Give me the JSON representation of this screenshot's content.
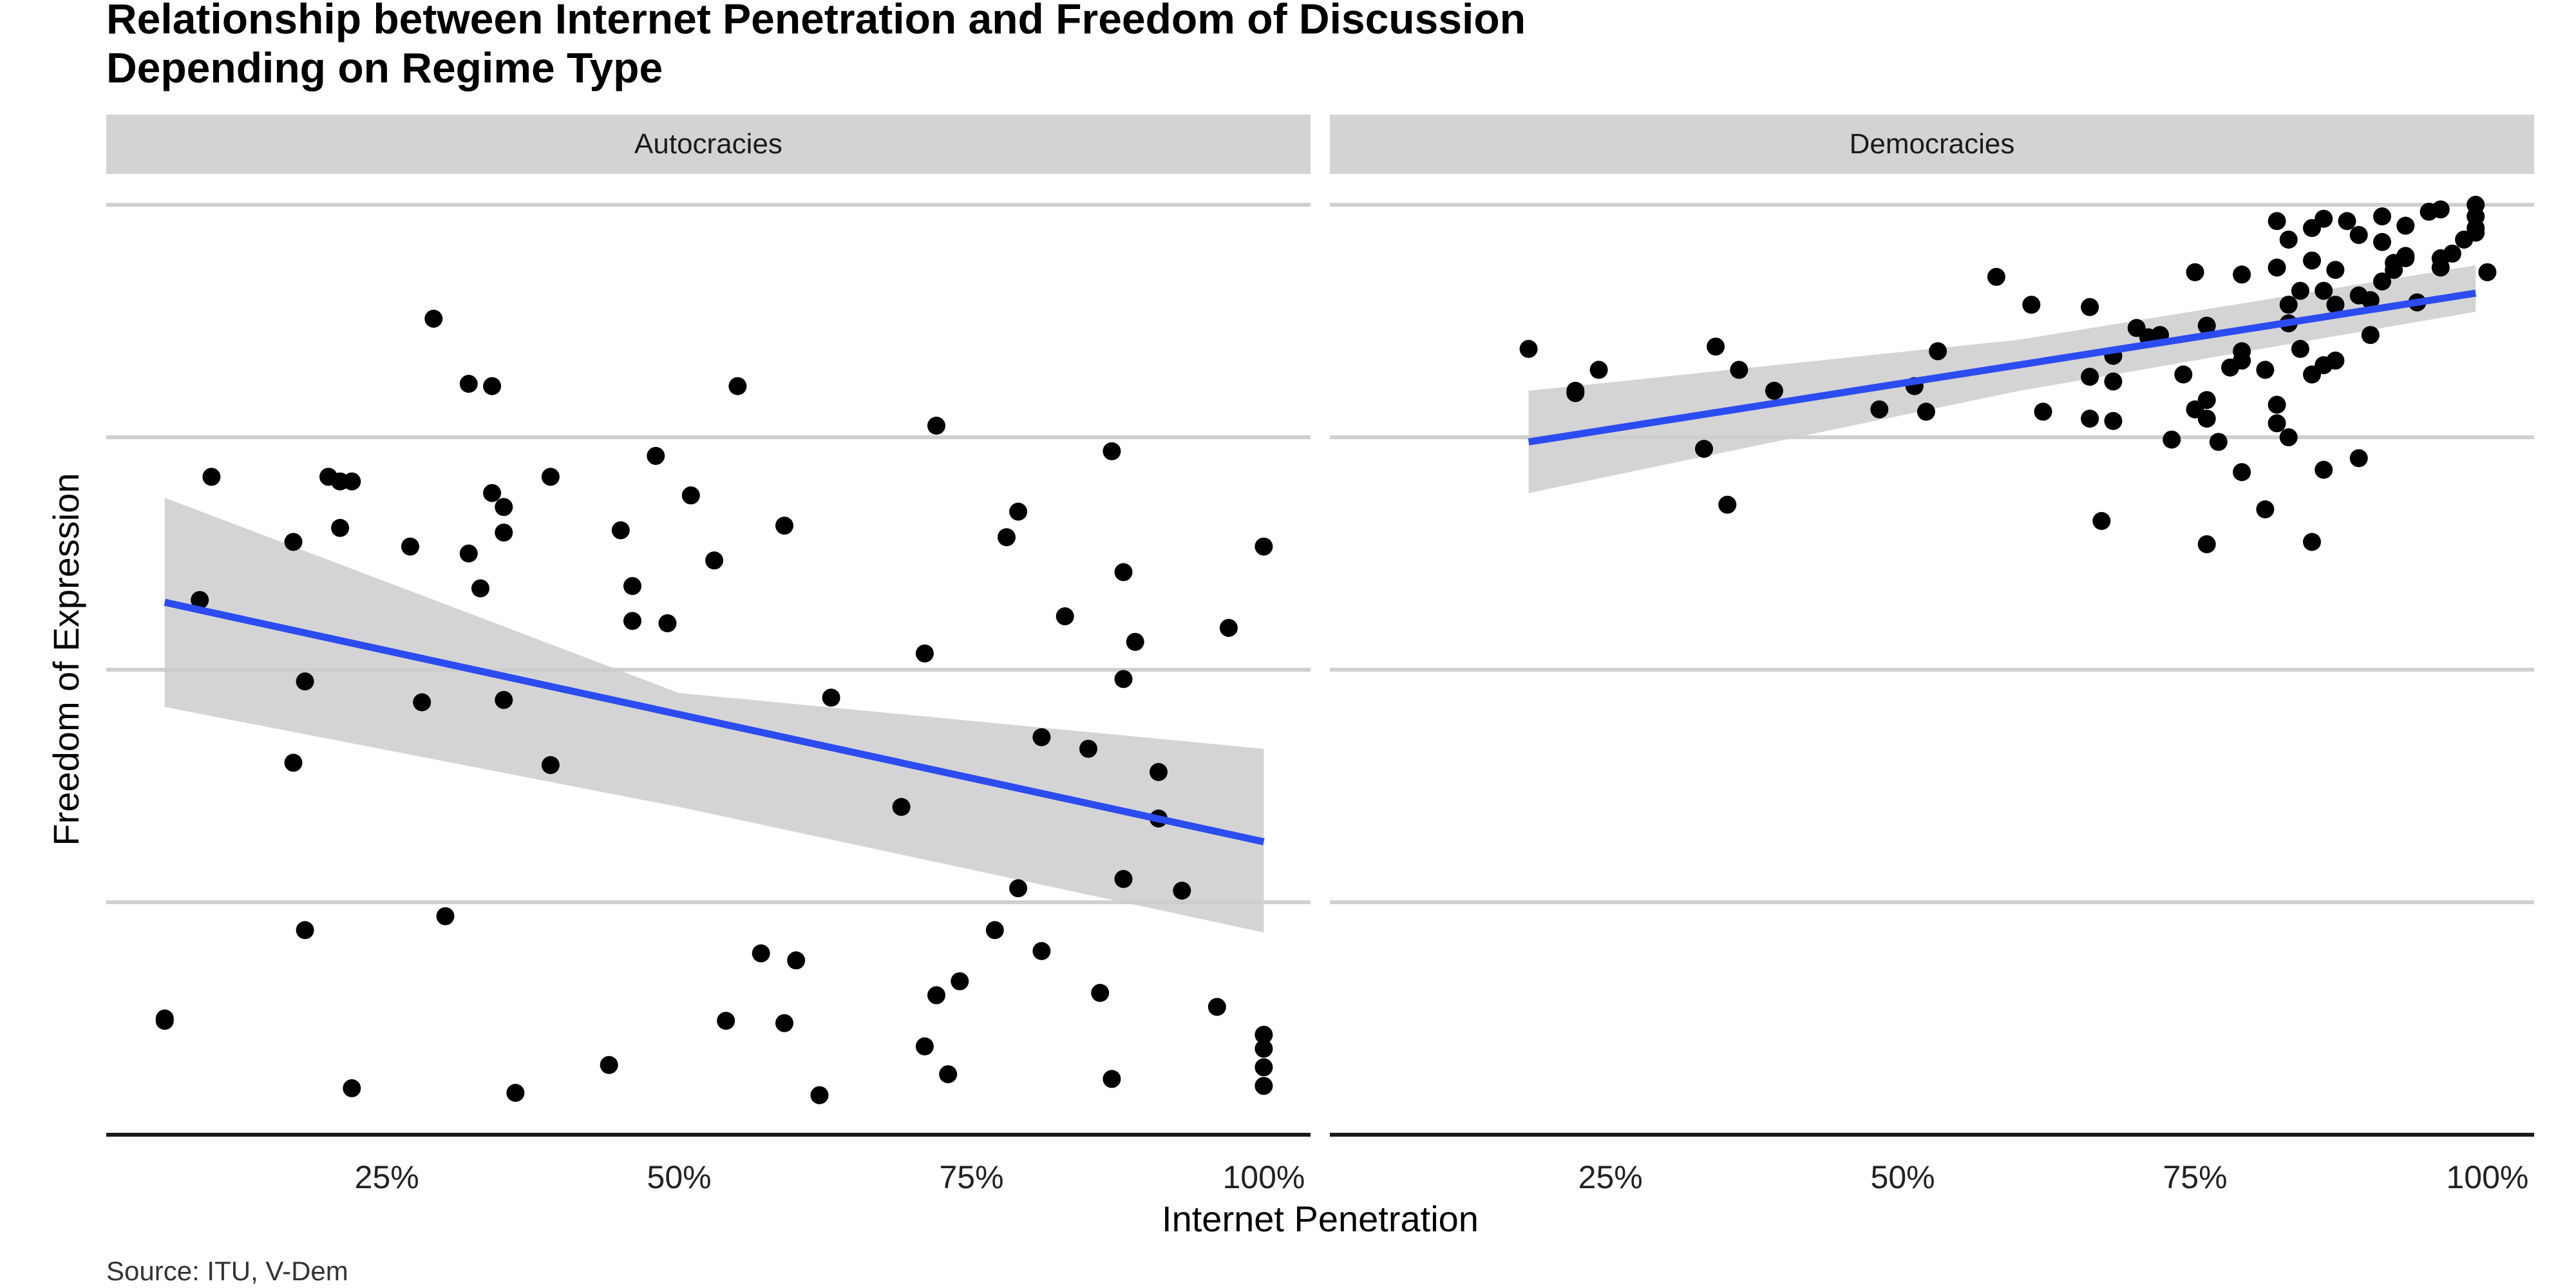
{
  "title_line1": "Relationship between Internet Penetration and Freedom of Discussion",
  "title_line2": "Depending on Regime Type",
  "xlabel": "Internet Penetration",
  "ylabel": "Freedom of Expression",
  "caption": "Source: ITU, V-Dem",
  "colors": {
    "points": "#000000",
    "fit_line": "#2b4cf0",
    "ribbon": "#cccccc",
    "strip": "#d3d3d3",
    "grid": "#d0d0d0"
  },
  "chart_data": [
    {
      "type": "scatter",
      "panel": "Autocracies",
      "x_ticks": [
        "25%",
        "50%",
        "75%",
        "100%"
      ],
      "xlim": [
        0.01,
        1.04
      ],
      "ylim": [
        0,
        4
      ],
      "grid": "horizontal",
      "fit": {
        "method": "lm",
        "x0": 0.06,
        "y0": 2.29,
        "x1": 1.0,
        "y1": 1.26,
        "band": [
          [
            0.06,
            1.84,
            2.74
          ],
          [
            0.5,
            1.41,
            1.9
          ],
          [
            1.0,
            0.87,
            1.66
          ]
        ]
      },
      "points": [
        [
          0.06,
          0.5
        ],
        [
          0.06,
          0.49
        ],
        [
          0.09,
          2.3
        ],
        [
          0.1,
          2.83
        ],
        [
          0.17,
          2.55
        ],
        [
          0.17,
          1.6
        ],
        [
          0.18,
          1.95
        ],
        [
          0.18,
          0.88
        ],
        [
          0.2,
          2.83
        ],
        [
          0.21,
          2.81
        ],
        [
          0.21,
          2.61
        ],
        [
          0.22,
          2.81
        ],
        [
          0.22,
          0.2
        ],
        [
          0.27,
          2.53
        ],
        [
          0.28,
          1.86
        ],
        [
          0.29,
          3.51
        ],
        [
          0.3,
          0.94
        ],
        [
          0.32,
          3.23
        ],
        [
          0.32,
          2.5
        ],
        [
          0.33,
          2.35
        ],
        [
          0.34,
          3.22
        ],
        [
          0.34,
          2.76
        ],
        [
          0.35,
          2.7
        ],
        [
          0.35,
          2.59
        ],
        [
          0.35,
          1.87
        ],
        [
          0.36,
          0.18
        ],
        [
          0.39,
          2.83
        ],
        [
          0.39,
          1.59
        ],
        [
          0.44,
          0.3
        ],
        [
          0.45,
          2.6
        ],
        [
          0.46,
          2.36
        ],
        [
          0.46,
          2.21
        ],
        [
          0.48,
          2.92
        ],
        [
          0.49,
          2.2
        ],
        [
          0.51,
          2.75
        ],
        [
          0.53,
          2.47
        ],
        [
          0.54,
          0.49
        ],
        [
          0.55,
          3.22
        ],
        [
          0.57,
          0.78
        ],
        [
          0.59,
          2.62
        ],
        [
          0.59,
          0.48
        ],
        [
          0.6,
          0.75
        ],
        [
          0.62,
          0.17
        ],
        [
          0.63,
          1.88
        ],
        [
          0.69,
          1.41
        ],
        [
          0.71,
          2.07
        ],
        [
          0.71,
          0.38
        ],
        [
          0.72,
          3.05
        ],
        [
          0.72,
          0.6
        ],
        [
          0.73,
          0.26
        ],
        [
          0.74,
          0.66
        ],
        [
          0.77,
          0.88
        ],
        [
          0.78,
          2.57
        ],
        [
          0.79,
          2.68
        ],
        [
          0.79,
          1.06
        ],
        [
          0.81,
          1.71
        ],
        [
          0.81,
          0.79
        ],
        [
          0.83,
          2.23
        ],
        [
          0.85,
          1.66
        ],
        [
          0.86,
          0.61
        ],
        [
          0.87,
          2.94
        ],
        [
          0.87,
          0.24
        ],
        [
          0.88,
          2.42
        ],
        [
          0.88,
          1.96
        ],
        [
          0.88,
          1.1
        ],
        [
          0.89,
          2.12
        ],
        [
          0.91,
          1.56
        ],
        [
          0.91,
          1.36
        ],
        [
          0.93,
          1.05
        ],
        [
          0.96,
          0.55
        ],
        [
          0.97,
          2.18
        ],
        [
          1.0,
          2.53
        ],
        [
          1.0,
          0.43
        ],
        [
          1.0,
          0.37
        ],
        [
          1.0,
          0.29
        ],
        [
          1.0,
          0.21
        ]
      ]
    },
    {
      "type": "scatter",
      "panel": "Democracies",
      "x_ticks": [
        "25%",
        "50%",
        "75%",
        "100%"
      ],
      "xlim": [
        0.01,
        1.04
      ],
      "ylim": [
        0,
        4
      ],
      "grid": "horizontal",
      "fit": {
        "method": "lm",
        "x0": 0.18,
        "y0": 2.98,
        "x1": 0.99,
        "y1": 3.62,
        "band": [
          [
            0.18,
            2.76,
            3.2
          ],
          [
            0.6,
            3.2,
            3.42
          ],
          [
            0.99,
            3.54,
            3.74
          ]
        ]
      },
      "points": [
        [
          0.18,
          3.38
        ],
        [
          0.22,
          3.2
        ],
        [
          0.22,
          3.19
        ],
        [
          0.24,
          3.29
        ],
        [
          0.33,
          2.95
        ],
        [
          0.34,
          3.39
        ],
        [
          0.35,
          2.71
        ],
        [
          0.36,
          3.29
        ],
        [
          0.39,
          3.2
        ],
        [
          0.48,
          3.12
        ],
        [
          0.51,
          3.22
        ],
        [
          0.52,
          3.11
        ],
        [
          0.53,
          3.37
        ],
        [
          0.58,
          3.69
        ],
        [
          0.61,
          3.57
        ],
        [
          0.62,
          3.11
        ],
        [
          0.66,
          3.56
        ],
        [
          0.66,
          3.26
        ],
        [
          0.66,
          3.08
        ],
        [
          0.67,
          2.64
        ],
        [
          0.68,
          3.35
        ],
        [
          0.68,
          3.24
        ],
        [
          0.68,
          3.07
        ],
        [
          0.7,
          3.47
        ],
        [
          0.71,
          3.43
        ],
        [
          0.72,
          3.44
        ],
        [
          0.73,
          2.99
        ],
        [
          0.74,
          3.27
        ],
        [
          0.75,
          3.71
        ],
        [
          0.75,
          3.12
        ],
        [
          0.76,
          3.48
        ],
        [
          0.76,
          3.16
        ],
        [
          0.76,
          3.08
        ],
        [
          0.76,
          2.54
        ],
        [
          0.77,
          2.98
        ],
        [
          0.78,
          3.3
        ],
        [
          0.79,
          3.7
        ],
        [
          0.79,
          3.37
        ],
        [
          0.79,
          3.33
        ],
        [
          0.79,
          2.85
        ],
        [
          0.81,
          3.29
        ],
        [
          0.81,
          2.69
        ],
        [
          0.82,
          3.93
        ],
        [
          0.82,
          3.73
        ],
        [
          0.82,
          3.14
        ],
        [
          0.82,
          3.06
        ],
        [
          0.83,
          3.85
        ],
        [
          0.83,
          3.57
        ],
        [
          0.83,
          3.49
        ],
        [
          0.83,
          3.0
        ],
        [
          0.84,
          3.63
        ],
        [
          0.84,
          3.38
        ],
        [
          0.85,
          3.9
        ],
        [
          0.85,
          3.76
        ],
        [
          0.85,
          3.27
        ],
        [
          0.85,
          2.55
        ],
        [
          0.86,
          3.94
        ],
        [
          0.86,
          3.63
        ],
        [
          0.86,
          3.31
        ],
        [
          0.86,
          2.86
        ],
        [
          0.87,
          3.72
        ],
        [
          0.87,
          3.57
        ],
        [
          0.87,
          3.33
        ],
        [
          0.88,
          3.93
        ],
        [
          0.89,
          3.87
        ],
        [
          0.89,
          3.61
        ],
        [
          0.89,
          2.91
        ],
        [
          0.9,
          3.59
        ],
        [
          0.9,
          3.44
        ],
        [
          0.91,
          3.95
        ],
        [
          0.91,
          3.84
        ],
        [
          0.91,
          3.67
        ],
        [
          0.92,
          3.75
        ],
        [
          0.92,
          3.72
        ],
        [
          0.93,
          3.91
        ],
        [
          0.93,
          3.78
        ],
        [
          0.93,
          3.77
        ],
        [
          0.94,
          3.58
        ],
        [
          0.95,
          3.97
        ],
        [
          0.96,
          3.98
        ],
        [
          0.96,
          3.77
        ],
        [
          0.96,
          3.73
        ],
        [
          0.97,
          3.79
        ],
        [
          0.98,
          3.85
        ],
        [
          0.99,
          4.0
        ],
        [
          0.99,
          3.95
        ],
        [
          0.99,
          3.9
        ],
        [
          0.99,
          3.88
        ],
        [
          1.0,
          3.71
        ]
      ]
    }
  ]
}
